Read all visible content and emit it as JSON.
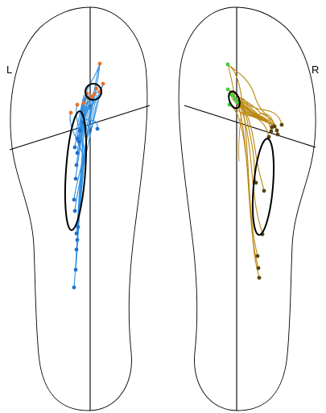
{
  "labels": {
    "left": "L",
    "right": "R"
  },
  "colors": {
    "outline": "#000000",
    "left_trace": "#2f8fe0",
    "left_start_marker": "#e8722c",
    "left_end_marker": "#1f6fd1",
    "right_trace": "#b9860f",
    "right_start_marker": "#3fcf3f",
    "right_end_marker": "#5a4310",
    "ellipse": "#000000"
  },
  "icons": {
    "left_foot": "left-foot-outline-icon",
    "right_foot": "right-foot-outline-icon"
  }
}
